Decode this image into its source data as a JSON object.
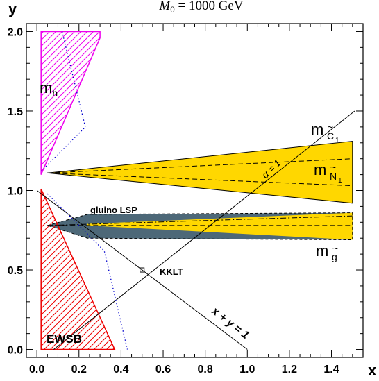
{
  "chart_data": {
    "type": "area",
    "title_main": "M",
    "title_sub": "0",
    "title_rest": " = 1000 GeV",
    "xlabel": "x",
    "ylabel": "y",
    "xlim": [
      -0.05,
      1.55
    ],
    "ylim": [
      -0.05,
      2.05
    ],
    "x_ticks": [
      "0.0",
      "0.2",
      "0.4",
      "0.6",
      "0.8",
      "1.0",
      "1.2",
      "1.4"
    ],
    "x_tick_values": [
      0.0,
      0.2,
      0.4,
      0.6,
      0.8,
      1.0,
      1.2,
      1.4
    ],
    "y_ticks": [
      "0.0",
      "0.5",
      "1.0",
      "1.5",
      "2.0"
    ],
    "y_tick_values": [
      0.0,
      0.5,
      1.0,
      1.5,
      2.0
    ],
    "colors": {
      "mh": "#ee00ee",
      "ewsb": "#ee0000",
      "chargino_band": "#ffd700",
      "gluino_lsp": "#4d6878",
      "dotted": "#0000cc",
      "lines": "#000000"
    },
    "regions": [
      {
        "name": "mh",
        "label": "m",
        "label_sub": "h",
        "points": [
          [
            0.02,
            2.0
          ],
          [
            0.3,
            2.0
          ],
          [
            0.3,
            1.96
          ],
          [
            0.02,
            1.1
          ]
        ]
      },
      {
        "name": "EWSB",
        "label": "EWSB",
        "points": [
          [
            0.02,
            0.0
          ],
          [
            0.02,
            1.01
          ],
          [
            0.37,
            0.0
          ]
        ]
      },
      {
        "name": "chargino-band",
        "points": [
          [
            0.05,
            1.11
          ],
          [
            1.5,
            1.31
          ],
          [
            1.5,
            0.92
          ]
        ]
      },
      {
        "name": "gluino-lsp",
        "label": "gluino LSP",
        "points": [
          [
            0.05,
            0.78
          ],
          [
            0.24,
            0.85
          ],
          [
            1.5,
            0.86
          ],
          [
            1.5,
            0.69
          ],
          [
            0.24,
            0.7
          ]
        ]
      },
      {
        "name": "gluino-band-yellow",
        "points": [
          [
            0.24,
            0.79
          ],
          [
            1.5,
            0.86
          ],
          [
            1.5,
            0.69
          ],
          [
            0.24,
            0.78
          ]
        ]
      }
    ],
    "lines": [
      {
        "name": "x-plus-y-equals-1",
        "label": "x + y = 1",
        "points": [
          [
            0.0,
            1.0
          ],
          [
            1.0,
            0.0
          ]
        ]
      },
      {
        "name": "alpha-equals-1",
        "label": "α = 1",
        "points": [
          [
            0.08,
            0.0
          ],
          [
            1.51,
            1.5
          ]
        ]
      },
      {
        "name": "chargino-dashed-upper",
        "style": "dashed",
        "points": [
          [
            0.05,
            1.11
          ],
          [
            1.5,
            1.2
          ]
        ]
      },
      {
        "name": "chargino-dashed-lower",
        "style": "dashed",
        "points": [
          [
            0.05,
            1.11
          ],
          [
            1.5,
            1.03
          ]
        ]
      },
      {
        "name": "gluino-dashed",
        "style": "dashed",
        "points": [
          [
            0.05,
            0.78
          ],
          [
            1.5,
            0.78
          ]
        ]
      },
      {
        "name": "gluino-dashdot",
        "style": "dashdot",
        "points": [
          [
            0.05,
            0.78
          ],
          [
            1.5,
            0.84
          ]
        ]
      },
      {
        "name": "dotted-upper",
        "style": "dotted",
        "points": [
          [
            0.12,
            2.0
          ],
          [
            0.23,
            1.4
          ],
          [
            0.02,
            1.12
          ]
        ]
      },
      {
        "name": "dotted-lower",
        "style": "dotted",
        "points": [
          [
            0.05,
            0.98
          ],
          [
            0.32,
            0.62
          ],
          [
            0.43,
            0.0
          ]
        ]
      }
    ],
    "kklt_point": {
      "label": "KKLT",
      "x": 0.5,
      "y": 0.5
    },
    "labels": {
      "chargino": {
        "main": "m",
        "accent": "~",
        "sub": "C",
        "subsub": "1"
      },
      "neutralino": {
        "main": "m",
        "accent": "~",
        "sub": "N",
        "subsub": "1"
      },
      "gluino": {
        "main": "m",
        "accent": "~",
        "sub": "g"
      }
    }
  }
}
